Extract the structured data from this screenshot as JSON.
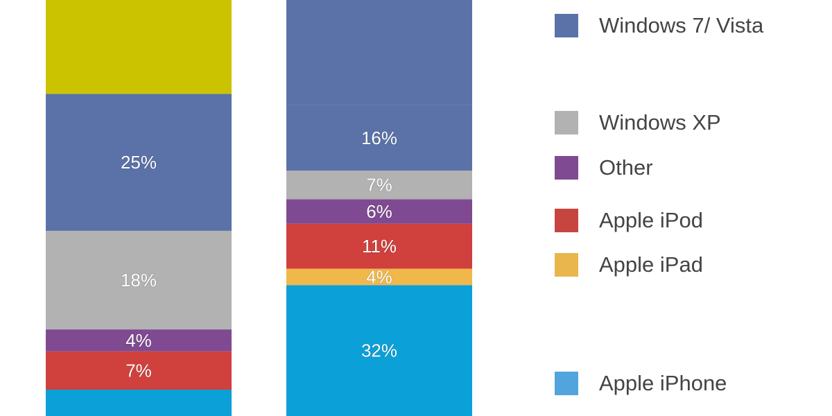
{
  "chart_data": {
    "type": "bar",
    "stacked": true,
    "orientation": "vertical",
    "categories": [
      "",
      ""
    ],
    "series": [
      {
        "name": "Apple iPhone",
        "color": "#0ba0d8",
        "values": [
          null,
          32
        ]
      },
      {
        "name": "Apple iPad",
        "color": "#f0b84a",
        "values": [
          null,
          4
        ]
      },
      {
        "name": "Apple iPod",
        "color": "#d0413d",
        "values": [
          7,
          11
        ]
      },
      {
        "name": "Other",
        "color": "#7f4a92",
        "values": [
          4,
          6
        ]
      },
      {
        "name": "Windows XP",
        "color": "#b2b2b2",
        "values": [
          18,
          7
        ]
      },
      {
        "name": "Windows 7/ Vista",
        "color": "#5a72a8",
        "values": [
          25,
          16
        ]
      },
      {
        "name": "",
        "color": "#cbc200",
        "values": [
          null,
          null
        ]
      }
    ],
    "grid": false,
    "legend_position": "right"
  },
  "legend": [
    {
      "label": "Windows 7/ Vista",
      "color": "#5a72a8"
    },
    {
      "label": "Windows XP",
      "color": "#b2b2b2"
    },
    {
      "label": "Other",
      "color": "#7f4a92"
    },
    {
      "label": "Apple iPod",
      "color": "#c7453f"
    },
    {
      "label": "Apple iPad",
      "color": "#e8b64c"
    },
    {
      "label": "Apple iPhone",
      "color": "#52a4dd"
    }
  ]
}
